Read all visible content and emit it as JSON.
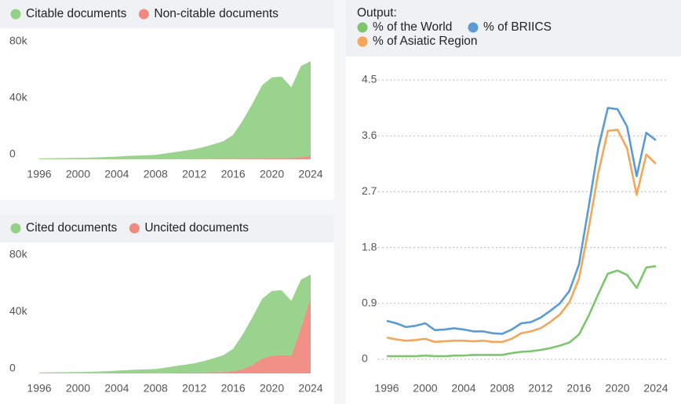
{
  "chart_data": [
    {
      "type": "area",
      "x": [
        1996,
        1997,
        1998,
        1999,
        2000,
        2001,
        2002,
        2003,
        2004,
        2005,
        2006,
        2007,
        2008,
        2009,
        2010,
        2011,
        2012,
        2013,
        2014,
        2015,
        2016,
        2017,
        2018,
        2019,
        2020,
        2021,
        2022,
        2023,
        2024
      ],
      "series": [
        {
          "name": "Citable documents",
          "color": "#93d187",
          "values": [
            500,
            600,
            700,
            800,
            900,
            1000,
            1200,
            1500,
            1800,
            2200,
            2500,
            2700,
            3000,
            4000,
            5000,
            6000,
            7000,
            8500,
            10500,
            12500,
            17000,
            27000,
            39000,
            52000,
            57000,
            57500,
            50000,
            64500,
            67000
          ]
        },
        {
          "name": "Non-citable documents",
          "color": "#ef8a80",
          "values": [
            100,
            100,
            100,
            100,
            100,
            100,
            100,
            100,
            100,
            100,
            100,
            100,
            100,
            100,
            100,
            100,
            100,
            200,
            200,
            300,
            300,
            500,
            500,
            500,
            1000,
            1000,
            1000,
            1500,
            2500
          ]
        }
      ],
      "xlim": [
        1996,
        2024
      ],
      "xticks": [
        1996,
        2000,
        2004,
        2008,
        2012,
        2016,
        2020,
        2024
      ],
      "ylim": [
        0,
        80000
      ],
      "yticks": [
        {
          "value": 0,
          "label": "0"
        },
        {
          "value": 40000,
          "label": "40k"
        },
        {
          "value": 80000,
          "label": "80k"
        }
      ],
      "grid": false
    },
    {
      "type": "area",
      "x": [
        1996,
        1997,
        1998,
        1999,
        2000,
        2001,
        2002,
        2003,
        2004,
        2005,
        2006,
        2007,
        2008,
        2009,
        2010,
        2011,
        2012,
        2013,
        2014,
        2015,
        2016,
        2017,
        2018,
        2019,
        2020,
        2021,
        2022,
        2023,
        2024
      ],
      "series": [
        {
          "name": "Cited documents",
          "color": "#93d187",
          "values": [
            500,
            600,
            680,
            770,
            850,
            930,
            1110,
            1380,
            1650,
            2020,
            2300,
            2480,
            2750,
            3680,
            4600,
            5550,
            6500,
            8000,
            9900,
            11800,
            15800,
            24500,
            33500,
            42000,
            45500,
            45500,
            38500,
            34000,
            16500
          ]
        },
        {
          "name": "Uncited documents",
          "color": "#ef8a80",
          "values": [
            100,
            100,
            120,
            130,
            150,
            170,
            190,
            220,
            250,
            280,
            300,
            320,
            350,
            420,
            500,
            550,
            600,
            700,
            800,
            1000,
            1500,
            3000,
            6000,
            10500,
            12500,
            13000,
            12500,
            32000,
            53000
          ]
        }
      ],
      "xlim": [
        1996,
        2024
      ],
      "xticks": [
        1996,
        2000,
        2004,
        2008,
        2012,
        2016,
        2020,
        2024
      ],
      "ylim": [
        0,
        80000
      ],
      "yticks": [
        {
          "value": 0,
          "label": "0"
        },
        {
          "value": 40000,
          "label": "40k"
        },
        {
          "value": 80000,
          "label": "80k"
        }
      ],
      "grid": false
    },
    {
      "type": "line",
      "legend_title": "Output:",
      "x": [
        1996,
        1997,
        1998,
        1999,
        2000,
        2001,
        2002,
        2003,
        2004,
        2005,
        2006,
        2007,
        2008,
        2009,
        2010,
        2011,
        2012,
        2013,
        2014,
        2015,
        2016,
        2017,
        2018,
        2019,
        2020,
        2021,
        2022,
        2023,
        2024
      ],
      "series": [
        {
          "name": "% of the World",
          "color": "#7dc66e",
          "values": [
            0.05,
            0.05,
            0.05,
            0.05,
            0.06,
            0.05,
            0.05,
            0.06,
            0.06,
            0.07,
            0.07,
            0.07,
            0.07,
            0.1,
            0.12,
            0.13,
            0.15,
            0.18,
            0.22,
            0.27,
            0.4,
            0.7,
            1.05,
            1.38,
            1.43,
            1.36,
            1.15,
            1.48,
            1.5
          ]
        },
        {
          "name": "% of BRIICS",
          "color": "#5b9bd5",
          "values": [
            0.62,
            0.58,
            0.52,
            0.54,
            0.58,
            0.47,
            0.48,
            0.5,
            0.48,
            0.45,
            0.45,
            0.42,
            0.41,
            0.48,
            0.58,
            0.6,
            0.67,
            0.78,
            0.9,
            1.1,
            1.53,
            2.45,
            3.4,
            4.05,
            4.03,
            3.75,
            2.95,
            3.65,
            3.53
          ]
        },
        {
          "name": "% of Asiatic Region",
          "color": "#f4a65b",
          "values": [
            0.35,
            0.32,
            0.3,
            0.31,
            0.33,
            0.28,
            0.29,
            0.3,
            0.3,
            0.29,
            0.3,
            0.28,
            0.28,
            0.33,
            0.42,
            0.45,
            0.5,
            0.6,
            0.72,
            0.92,
            1.3,
            2.1,
            3.0,
            3.68,
            3.7,
            3.4,
            2.65,
            3.3,
            3.15
          ]
        }
      ],
      "xlim": [
        1996,
        2024
      ],
      "xticks": [
        1996,
        2000,
        2004,
        2008,
        2012,
        2016,
        2020,
        2024
      ],
      "ylim": [
        0,
        4.5
      ],
      "yticks": [
        0,
        0.9,
        1.8,
        2.7,
        3.6,
        4.5
      ],
      "grid": true
    }
  ]
}
